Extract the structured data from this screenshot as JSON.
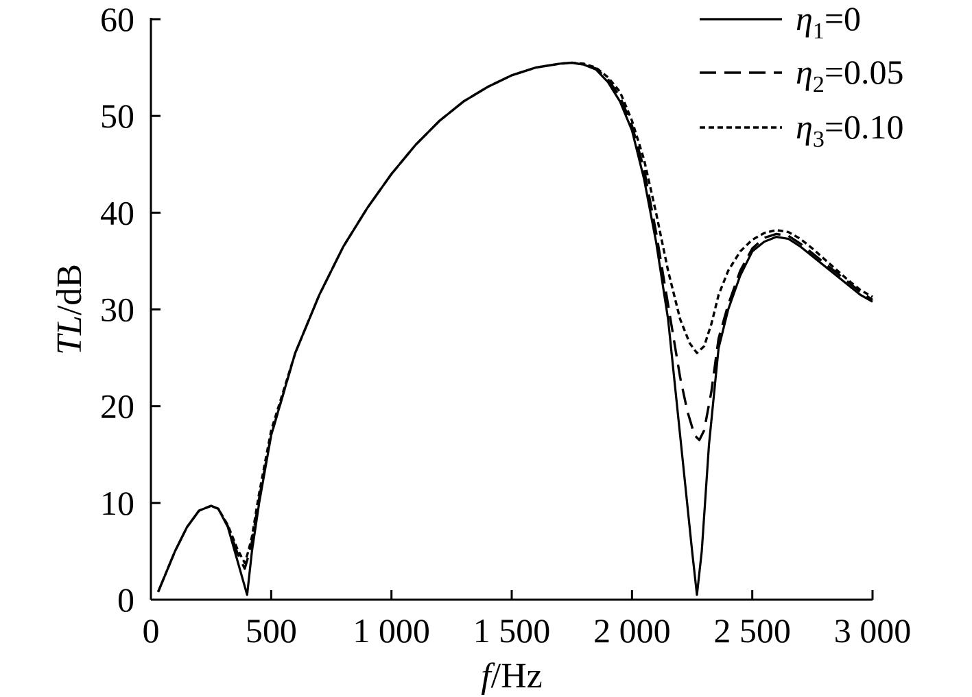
{
  "chart_data": {
    "type": "line",
    "xlabel": {
      "italic": "f",
      "rest": "/Hz"
    },
    "ylabel": {
      "italic": "TL",
      "rest": "/dB"
    },
    "xlim": [
      0,
      3000
    ],
    "ylim": [
      0,
      60
    ],
    "x_ticks": [
      0,
      500,
      1000,
      1500,
      2000,
      2500,
      3000
    ],
    "x_tick_labels": [
      "0",
      "500",
      "1 000",
      "1 500",
      "2 000",
      "2 500",
      "3 000"
    ],
    "y_ticks": [
      0,
      10,
      20,
      30,
      40,
      50,
      60
    ],
    "y_tick_labels": [
      "0",
      "10",
      "20",
      "30",
      "40",
      "50",
      "60"
    ],
    "grid": false,
    "legend_position": "top-right",
    "series": [
      {
        "name": "η1=0",
        "legend": {
          "symbol": "η",
          "sub": "1",
          "value": "=0"
        },
        "style": "solid",
        "x": [
          30,
          100,
          150,
          200,
          250,
          280,
          320,
          360,
          400,
          420,
          450,
          500,
          600,
          700,
          800,
          900,
          1000,
          1100,
          1200,
          1300,
          1400,
          1500,
          1600,
          1700,
          1750,
          1800,
          1850,
          1900,
          1950,
          2000,
          2050,
          2100,
          2150,
          2200,
          2250,
          2270,
          2290,
          2320,
          2360,
          2400,
          2450,
          2500,
          2550,
          2600,
          2650,
          2700,
          2750,
          2800,
          2850,
          2900,
          2950,
          3000
        ],
        "y": [
          0.8,
          5,
          7.5,
          9.2,
          9.7,
          9.4,
          7.5,
          4,
          0.5,
          5,
          10,
          17,
          25.5,
          31.5,
          36.5,
          40.5,
          44,
          47,
          49.5,
          51.5,
          53,
          54.2,
          55,
          55.4,
          55.5,
          55.3,
          54.8,
          53.5,
          51.5,
          48.5,
          43.5,
          37,
          29,
          17,
          5,
          0.5,
          5,
          16,
          26,
          30,
          33.5,
          36,
          37,
          37.5,
          37.3,
          36.5,
          35.5,
          34.5,
          33.5,
          32.5,
          31.5,
          30.8
        ]
      },
      {
        "name": "η2=0.05",
        "legend": {
          "symbol": "η",
          "sub": "2",
          "value": "=0.05"
        },
        "style": "dashed",
        "x": [
          30,
          100,
          150,
          200,
          250,
          280,
          320,
          360,
          390,
          405,
          420,
          450,
          500,
          600,
          700,
          800,
          900,
          1000,
          1100,
          1200,
          1300,
          1400,
          1500,
          1600,
          1700,
          1750,
          1800,
          1850,
          1900,
          1950,
          2000,
          2050,
          2100,
          2150,
          2200,
          2230,
          2260,
          2280,
          2300,
          2330,
          2360,
          2400,
          2450,
          2500,
          2550,
          2600,
          2650,
          2700,
          2750,
          2800,
          2850,
          2900,
          2950,
          3000
        ],
        "y": [
          0.8,
          5,
          7.5,
          9.2,
          9.7,
          9.4,
          7.6,
          4.8,
          3.2,
          4.5,
          6,
          10.5,
          17,
          25.5,
          31.5,
          36.5,
          40.5,
          44,
          47,
          49.5,
          51.5,
          53,
          54.2,
          55,
          55.4,
          55.5,
          55.3,
          54.9,
          53.8,
          52,
          49,
          44.5,
          38,
          30.5,
          23,
          19.5,
          17,
          16.5,
          17.5,
          21.5,
          27,
          30.5,
          34,
          36.3,
          37.4,
          37.8,
          37.6,
          36.8,
          35.8,
          34.8,
          33.8,
          32.8,
          31.8,
          31
        ]
      },
      {
        "name": "η3=0.10",
        "legend": {
          "symbol": "η",
          "sub": "3",
          "value": "=0.10"
        },
        "style": "dotted",
        "x": [
          30,
          100,
          150,
          200,
          250,
          280,
          320,
          360,
          390,
          405,
          420,
          450,
          500,
          600,
          700,
          800,
          900,
          1000,
          1100,
          1200,
          1300,
          1400,
          1500,
          1600,
          1700,
          1750,
          1800,
          1850,
          1900,
          1950,
          2000,
          2050,
          2100,
          2150,
          2200,
          2240,
          2270,
          2300,
          2330,
          2360,
          2400,
          2450,
          2500,
          2550,
          2600,
          2650,
          2700,
          2750,
          2800,
          2850,
          2900,
          2950,
          3000
        ],
        "y": [
          0.8,
          5,
          7.5,
          9.2,
          9.7,
          9.4,
          7.7,
          5.2,
          3.8,
          5,
          6.5,
          11,
          17.5,
          25.5,
          31.5,
          36.5,
          40.5,
          44,
          47,
          49.5,
          51.5,
          53,
          54.2,
          55,
          55.4,
          55.5,
          55.4,
          55,
          54,
          52.5,
          49.5,
          45.5,
          40,
          34,
          29,
          26.5,
          25.5,
          26.2,
          28.5,
          31.5,
          34,
          36,
          37.2,
          37.9,
          38.2,
          38,
          37.3,
          36.3,
          35.2,
          34.1,
          33,
          32,
          31.3
        ]
      }
    ]
  }
}
